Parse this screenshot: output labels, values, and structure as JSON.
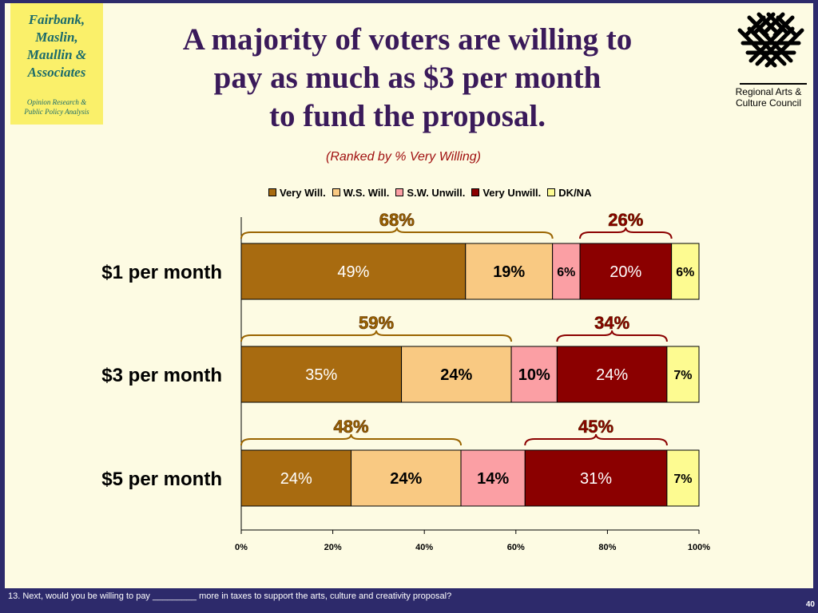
{
  "logo": {
    "name": "Fairbank,\nMaslin,\nMaullin &\nAssociates",
    "tagline": "Opinion Research &\nPublic Policy Analysis"
  },
  "title": "A majority of voters are willing to\npay as much as $3 per month\nto fund the proposal.",
  "subtitle": "(Ranked by % Very Willing)",
  "partner": {
    "name": "Regional Arts &\nCulture Council",
    "icon": "woven-star-icon"
  },
  "colors": {
    "background": "#fdfbe3",
    "frame": "#2d2a6b",
    "title": "#3a1a5a",
    "subtitle": "#a01010",
    "willing_bracket": "#9a6400",
    "unwilling_bracket": "#8b0000"
  },
  "chart_data": {
    "type": "bar",
    "orientation": "horizontal",
    "stacked": true,
    "categories": [
      "$1 per month",
      "$3 per month",
      "$5 per month"
    ],
    "series": [
      {
        "name": "Very Will.",
        "color": "#a86b10",
        "labels": [
          "49%",
          "35%",
          "24%"
        ],
        "values": [
          49,
          35,
          24
        ]
      },
      {
        "name": "W.S. Will.",
        "color": "#f9c982",
        "labels": [
          "19%",
          "24%",
          "24%"
        ],
        "values": [
          19,
          24,
          24
        ]
      },
      {
        "name": "S.W. Unwill.",
        "color": "#fb9fa4",
        "labels": [
          "6%",
          "10%",
          "14%"
        ],
        "values": [
          6,
          10,
          14
        ]
      },
      {
        "name": "Very Unwill.",
        "color": "#8b0000",
        "labels": [
          "20%",
          "24%",
          "31%"
        ],
        "values": [
          20,
          24,
          31
        ]
      },
      {
        "name": "DK/NA",
        "color": "#fdfb91",
        "labels": [
          "6%",
          "7%",
          "7%"
        ],
        "values": [
          6,
          7,
          7
        ]
      }
    ],
    "totals": {
      "willing": [
        "68%",
        "59%",
        "48%"
      ],
      "unwilling": [
        "26%",
        "34%",
        "45%"
      ]
    },
    "x_ticks": [
      "0%",
      "20%",
      "40%",
      "60%",
      "80%",
      "100%"
    ],
    "xlim": [
      0,
      100
    ],
    "legend_position": "top",
    "grid": false
  },
  "footnote": "13. Next, would you be willing to pay _________ more in taxes to support the arts, culture and creativity proposal?",
  "page_number": "40"
}
